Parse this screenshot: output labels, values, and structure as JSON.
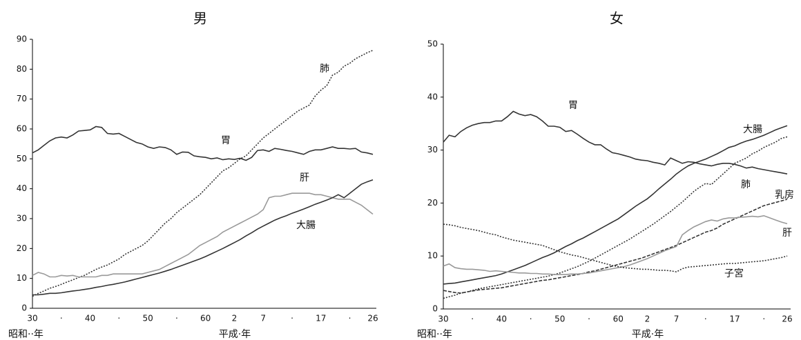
{
  "chart_data": [
    {
      "type": "line",
      "title": "男",
      "x_labels": [
        "昭和··年",
        "平成·年"
      ],
      "categories": [
        "30",
        null,
        null,
        null,
        null,
        "·",
        null,
        null,
        null,
        null,
        "40",
        null,
        null,
        null,
        null,
        "·",
        null,
        null,
        null,
        null,
        "50",
        null,
        null,
        null,
        null,
        "·",
        null,
        null,
        null,
        null,
        "60",
        null,
        null,
        null,
        null,
        "2",
        null,
        null,
        null,
        null,
        "7",
        null,
        null,
        null,
        null,
        "·",
        null,
        null,
        null,
        null,
        "17",
        null,
        null,
        null,
        null,
        "·",
        null,
        null,
        null,
        "26"
      ],
      "ylim": [
        0,
        90
      ],
      "yticks": [
        0,
        10,
        20,
        30,
        40,
        50,
        60,
        70,
        80,
        90
      ],
      "series": [
        {
          "name": "胃",
          "color": "#333333",
          "style": "solid",
          "values": [
            52,
            53,
            54.5,
            56,
            57,
            57.3,
            57,
            58,
            59.3,
            59.5,
            59.7,
            60.8,
            60.5,
            58.5,
            58.3,
            58.5,
            57.5,
            56.5,
            55.5,
            55,
            54,
            53.5,
            54,
            53.8,
            53,
            51.5,
            52.3,
            52.2,
            51,
            50.7,
            50.5,
            50,
            50.3,
            49.7,
            50,
            49.8,
            50.2,
            49.5,
            50.5,
            52.8,
            53,
            52.5,
            53.5,
            53.2,
            52.8,
            52.5,
            52,
            51.5,
            52.5,
            53,
            53,
            53.5,
            54,
            53.5,
            53.5,
            53.3,
            53.5,
            52.3,
            52,
            51.5
          ]
        },
        {
          "name": "肺",
          "color": "#333333",
          "style": "dotted",
          "values": [
            4,
            5,
            5.8,
            6.7,
            7.3,
            8,
            8.8,
            9.5,
            10.3,
            11,
            12,
            13,
            13.8,
            14.5,
            15.5,
            16.5,
            18,
            19,
            20,
            21,
            22.5,
            24.5,
            26.5,
            28.5,
            30,
            32,
            33.5,
            35,
            36.5,
            38,
            40,
            42,
            44,
            46,
            47,
            48.5,
            50,
            51,
            53,
            55,
            57,
            58.5,
            60,
            61.5,
            63,
            64.5,
            66,
            67,
            68,
            71,
            73,
            74.5,
            78,
            79,
            81,
            82,
            83.5,
            84.5,
            85.5,
            86.3
          ]
        },
        {
          "name": "肝",
          "color": "#999999",
          "style": "solid",
          "values": [
            11,
            12,
            11.5,
            10.5,
            10.5,
            11,
            10.8,
            11,
            10.5,
            10.5,
            10.5,
            10.5,
            11,
            11,
            11.5,
            11.5,
            11.5,
            11.5,
            11.5,
            11.5,
            12,
            12.5,
            13,
            14,
            15,
            16,
            17,
            18,
            19.5,
            21,
            22,
            23,
            24,
            25.5,
            26.5,
            27.5,
            28.5,
            29.5,
            30.5,
            31.5,
            33,
            37,
            37.5,
            37.5,
            38,
            38.5,
            38.5,
            38.5,
            38.5,
            38,
            38,
            37.5,
            37,
            36.5,
            36.5,
            36.5,
            35.5,
            34.5,
            33,
            31.5
          ]
        },
        {
          "name": "大腸",
          "color": "#333333",
          "style": "solid",
          "values": [
            4.5,
            4.5,
            4.7,
            5,
            5,
            5.2,
            5.5,
            5.8,
            6,
            6.3,
            6.6,
            7,
            7.3,
            7.7,
            8,
            8.4,
            8.8,
            9.3,
            9.8,
            10.3,
            10.8,
            11.3,
            11.8,
            12.4,
            13,
            13.7,
            14.4,
            15.1,
            15.8,
            16.5,
            17.3,
            18.2,
            19.1,
            20,
            21,
            22,
            23,
            24.2,
            25.3,
            26.5,
            27.5,
            28.5,
            29.5,
            30.3,
            31,
            31.8,
            32.5,
            33.2,
            34,
            34.8,
            35.5,
            36.2,
            37,
            38,
            37,
            38.5,
            40,
            41.5,
            42.3,
            43
          ]
        }
      ]
    },
    {
      "type": "line",
      "title": "女",
      "x_labels": [
        "昭和··年",
        "平成·年"
      ],
      "categories": [
        "30",
        null,
        null,
        null,
        null,
        "·",
        null,
        null,
        null,
        null,
        "40",
        null,
        null,
        null,
        null,
        "·",
        null,
        null,
        null,
        null,
        "50",
        null,
        null,
        null,
        null,
        "·",
        null,
        null,
        null,
        null,
        "60",
        null,
        null,
        null,
        null,
        "2",
        null,
        null,
        null,
        null,
        "7",
        null,
        null,
        null,
        null,
        "·",
        null,
        null,
        null,
        null,
        "17",
        null,
        null,
        null,
        null,
        "·",
        null,
        null,
        null,
        "26"
      ],
      "ylim": [
        0,
        50
      ],
      "yticks": [
        0,
        10,
        20,
        30,
        40,
        50
      ],
      "series": [
        {
          "name": "胃",
          "color": "#333333",
          "style": "solid",
          "values": [
            31.5,
            32.8,
            32.5,
            33.5,
            34.2,
            34.7,
            35,
            35.2,
            35.2,
            35.5,
            35.5,
            36.3,
            37.3,
            36.8,
            36.5,
            36.7,
            36.3,
            35.5,
            34.5,
            34.5,
            34.3,
            33.5,
            33.7,
            33,
            32.2,
            31.5,
            31,
            31,
            30.2,
            29.5,
            29.3,
            29,
            28.7,
            28.3,
            28.1,
            28,
            27.7,
            27.5,
            27.2,
            28.5,
            28,
            27.5,
            27.8,
            27.7,
            27.4,
            27.2,
            27,
            27.3,
            27.5,
            27.5,
            27.3,
            27,
            26.6,
            26.8,
            26.5,
            26.3,
            26.1,
            25.9,
            25.7,
            25.5
          ]
        },
        {
          "name": "大腸",
          "color": "#333333",
          "style": "solid",
          "values": [
            4.7,
            4.8,
            4.9,
            5.1,
            5.3,
            5.5,
            5.7,
            5.9,
            6.1,
            6.3,
            6.6,
            7,
            7.4,
            7.8,
            8.2,
            8.7,
            9.2,
            9.7,
            10.1,
            10.6,
            11.2,
            11.8,
            12.3,
            12.9,
            13.4,
            14,
            14.6,
            15.2,
            15.8,
            16.4,
            17,
            17.8,
            18.6,
            19.4,
            20.1,
            20.8,
            21.7,
            22.7,
            23.6,
            24.5,
            25.5,
            26.3,
            27,
            27.5,
            27.9,
            28.3,
            28.8,
            29.3,
            29.9,
            30.5,
            30.8,
            31.3,
            31.7,
            32,
            32.4,
            32.8,
            33.3,
            33.8,
            34.2,
            34.6
          ]
        },
        {
          "name": "肺",
          "color": "#333333",
          "style": "dotted",
          "values": [
            2,
            2.3,
            2.6,
            3,
            3.2,
            3.5,
            3.8,
            4,
            4.2,
            4.4,
            4.6,
            4.8,
            5,
            5.2,
            5.4,
            5.6,
            5.8,
            6,
            6.2,
            6.5,
            6.8,
            7.2,
            7.6,
            8,
            8.5,
            9,
            9.6,
            10.2,
            10.8,
            11.4,
            12,
            12.6,
            13.2,
            13.9,
            14.6,
            15.3,
            16,
            16.8,
            17.6,
            18.4,
            19.3,
            20.2,
            21.2,
            22.2,
            23,
            23.7,
            23.5,
            24.5,
            25.5,
            26.5,
            27.5,
            28,
            28.5,
            29.3,
            29.8,
            30.5,
            31,
            31.5,
            32.2,
            32.5
          ]
        },
        {
          "name": "乳房",
          "color": "#333333",
          "style": "dashed",
          "values": [
            3.5,
            3.3,
            3.1,
            3,
            3.2,
            3.4,
            3.6,
            3.7,
            3.8,
            3.9,
            4,
            4.2,
            4.4,
            4.6,
            4.8,
            5,
            5.2,
            5.4,
            5.5,
            5.7,
            5.9,
            6.1,
            6.3,
            6.5,
            6.7,
            7,
            7.2,
            7.5,
            7.8,
            8.1,
            8.4,
            8.7,
            9,
            9.3,
            9.6,
            10,
            10.4,
            10.8,
            11.2,
            11.6,
            12,
            12.5,
            13,
            13.5,
            14,
            14.5,
            14.8,
            15.3,
            16,
            16.5,
            17,
            17.5,
            18,
            18.5,
            19,
            19.5,
            19.8,
            20.1,
            20.4,
            20.7
          ]
        },
        {
          "name": "肝",
          "color": "#999999",
          "style": "solid",
          "values": [
            8.1,
            8.5,
            7.8,
            7.6,
            7.5,
            7.5,
            7.4,
            7.3,
            7.1,
            7.2,
            7.1,
            7,
            6.9,
            6.8,
            6.8,
            6.7,
            6.7,
            6.6,
            6.6,
            6.5,
            6.5,
            6.5,
            6.6,
            6.6,
            6.7,
            6.8,
            7,
            7.2,
            7.4,
            7.6,
            7.8,
            8,
            8.3,
            8.7,
            9.1,
            9.5,
            10,
            10.5,
            11,
            11.4,
            11.8,
            14,
            14.8,
            15.5,
            16,
            16.5,
            16.8,
            16.6,
            17,
            17.2,
            17.2,
            17.3,
            17.4,
            17.5,
            17.4,
            17.6,
            17.2,
            16.8,
            16.4,
            16.1
          ]
        },
        {
          "name": "子宮",
          "color": "#333333",
          "style": "dotted",
          "values": [
            16,
            15.9,
            15.7,
            15.4,
            15.2,
            15,
            14.8,
            14.5,
            14.2,
            14,
            13.6,
            13.3,
            13,
            12.8,
            12.6,
            12.4,
            12.2,
            12,
            11.6,
            11.2,
            10.8,
            10.5,
            10.2,
            10,
            9.7,
            9.4,
            9.1,
            8.8,
            8.5,
            8.2,
            8,
            7.8,
            7.7,
            7.6,
            7.5,
            7.5,
            7.4,
            7.3,
            7.3,
            7.2,
            7,
            7.6,
            7.9,
            8,
            8.1,
            8.2,
            8.3,
            8.4,
            8.5,
            8.6,
            8.6,
            8.7,
            8.8,
            8.9,
            9,
            9.1,
            9.3,
            9.5,
            9.7,
            10
          ]
        }
      ]
    }
  ]
}
